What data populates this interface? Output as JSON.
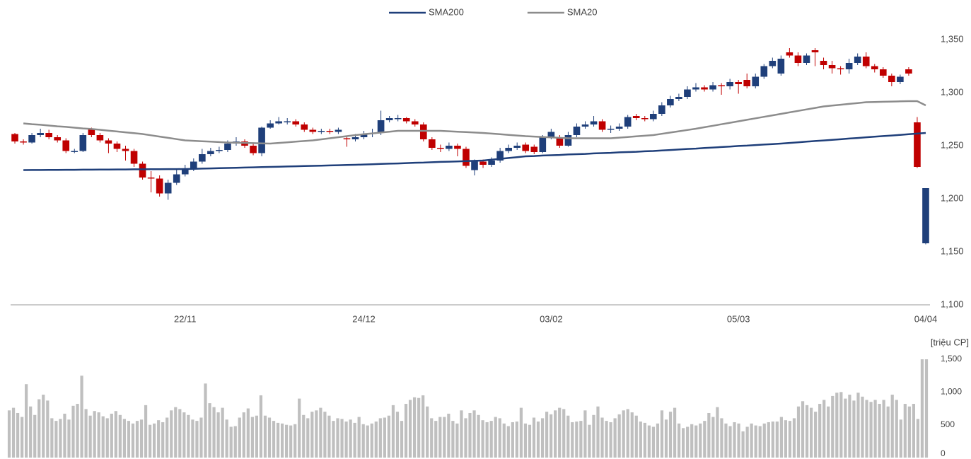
{
  "chart_data": [
    {
      "type": "candlestick",
      "categories": [
        null,
        null,
        null,
        null,
        null,
        null,
        null,
        null,
        null,
        null,
        null,
        null,
        null,
        null,
        null,
        null,
        null,
        null,
        null,
        null,
        "22/11",
        null,
        null,
        null,
        null,
        null,
        null,
        null,
        null,
        null,
        null,
        null,
        null,
        null,
        null,
        null,
        null,
        null,
        null,
        null,
        null,
        "24/12",
        null,
        null,
        null,
        null,
        null,
        null,
        null,
        null,
        null,
        null,
        null,
        null,
        null,
        null,
        null,
        null,
        null,
        null,
        null,
        null,
        null,
        "03/02",
        null,
        null,
        null,
        null,
        null,
        null,
        null,
        null,
        null,
        null,
        null,
        null,
        null,
        null,
        null,
        null,
        null,
        null,
        null,
        null,
        null,
        "05/03",
        null,
        null,
        null,
        null,
        null,
        null,
        null,
        null,
        null,
        null,
        null,
        null,
        null,
        null,
        null,
        null,
        null,
        null,
        null,
        null,
        null,
        "04/04"
      ],
      "open": [
        1261,
        1254,
        1253,
        1260,
        1262,
        1258,
        1255,
        1245,
        1245,
        1266,
        1260,
        1255,
        1252,
        1247,
        1245,
        1233,
        1220,
        1219,
        1205,
        1215,
        1223,
        1228,
        1235,
        1242,
        1245,
        1246,
        1252,
        1254,
        1250,
        1243,
        1267,
        1271,
        1273,
        1273,
        1270,
        1265,
        1263,
        1264,
        1263,
        1257,
        1256,
        1258,
        1261,
        1262,
        1274,
        1276,
        1276,
        1273,
        1270,
        1256,
        1248,
        1247,
        1250,
        1247,
        1227,
        1235,
        1232,
        1236,
        1245,
        1248,
        1251,
        1249,
        1244,
        1258,
        1258,
        1250,
        1260,
        1268,
        1270,
        1273,
        1265,
        1266,
        1268,
        1278,
        1276,
        1275,
        1280,
        1288,
        1294,
        1296,
        1303,
        1305,
        1303,
        1307,
        1306,
        1310,
        1312,
        1306,
        1315,
        1325,
        1318,
        1338,
        1335,
        1328,
        1340,
        1330,
        1326,
        1323,
        1322,
        1328,
        1334,
        1325,
        1322,
        1316,
        1310,
        1322,
        1272,
        1158
      ],
      "high": [
        1262,
        1256,
        1262,
        1266,
        1265,
        1260,
        1257,
        1247,
        1262,
        1267,
        1262,
        1257,
        1254,
        1250,
        1247,
        1235,
        1226,
        1222,
        1218,
        1228,
        1232,
        1238,
        1247,
        1248,
        1249,
        1255,
        1258,
        1256,
        1252,
        1268,
        1274,
        1277,
        1276,
        1275,
        1272,
        1267,
        1266,
        1266,
        1267,
        1259,
        1261,
        1264,
        1266,
        1283,
        1278,
        1279,
        1277,
        1275,
        1272,
        1258,
        1251,
        1253,
        1252,
        1249,
        1237,
        1237,
        1239,
        1248,
        1251,
        1253,
        1253,
        1251,
        1260,
        1266,
        1260,
        1263,
        1271,
        1273,
        1278,
        1275,
        1269,
        1271,
        1279,
        1280,
        1278,
        1283,
        1291,
        1297,
        1299,
        1306,
        1309,
        1307,
        1310,
        1309,
        1313,
        1312,
        1318,
        1318,
        1327,
        1333,
        1335,
        1342,
        1338,
        1337,
        1342,
        1333,
        1330,
        1325,
        1332,
        1337,
        1338,
        1327,
        1324,
        1318,
        1317,
        1324,
        1277,
        1210
      ],
      "low": [
        1252,
        1251,
        1252,
        1258,
        1256,
        1253,
        1243,
        1243,
        1244,
        1258,
        1253,
        1243,
        1244,
        1236,
        1230,
        1218,
        1206,
        1202,
        1199,
        1213,
        1221,
        1226,
        1233,
        1240,
        1243,
        1244,
        1250,
        1248,
        1241,
        1240,
        1266,
        1270,
        1270,
        1268,
        1263,
        1261,
        1261,
        1261,
        1261,
        1249,
        1254,
        1256,
        1258,
        1260,
        1272,
        1273,
        1271,
        1268,
        1254,
        1246,
        1244,
        1245,
        1240,
        1229,
        1222,
        1229,
        1230,
        1234,
        1243,
        1246,
        1243,
        1242,
        1243,
        1256,
        1248,
        1249,
        1258,
        1266,
        1268,
        1263,
        1262,
        1264,
        1266,
        1274,
        1273,
        1273,
        1278,
        1286,
        1292,
        1294,
        1301,
        1301,
        1301,
        1298,
        1303,
        1299,
        1304,
        1304,
        1313,
        1323,
        1316,
        1333,
        1325,
        1326,
        1325,
        1322,
        1318,
        1317,
        1318,
        1326,
        1323,
        1319,
        1314,
        1306,
        1308,
        1316,
        1229,
        1157
      ],
      "close": [
        1254,
        1253,
        1260,
        1262,
        1258,
        1255,
        1245,
        1245,
        1260,
        1260,
        1255,
        1252,
        1247,
        1245,
        1233,
        1220,
        1219,
        1205,
        1215,
        1223,
        1228,
        1235,
        1242,
        1245,
        1246,
        1252,
        1254,
        1250,
        1243,
        1267,
        1271,
        1273,
        1273,
        1270,
        1265,
        1263,
        1264,
        1263,
        1265,
        1256,
        1258,
        1261,
        1262,
        1274,
        1276,
        1276,
        1273,
        1270,
        1256,
        1248,
        1247,
        1250,
        1247,
        1231,
        1235,
        1232,
        1236,
        1245,
        1248,
        1250,
        1245,
        1244,
        1258,
        1263,
        1250,
        1260,
        1268,
        1270,
        1273,
        1265,
        1266,
        1268,
        1277,
        1276,
        1275,
        1280,
        1288,
        1294,
        1296,
        1303,
        1305,
        1303,
        1307,
        1306,
        1310,
        1308,
        1306,
        1315,
        1325,
        1330,
        1332,
        1335,
        1328,
        1335,
        1338,
        1326,
        1323,
        1322,
        1328,
        1334,
        1325,
        1322,
        1316,
        1310,
        1315,
        1318,
        1230,
        1210
      ],
      "up_color": "#1f3f7a",
      "down_color": "#c00000",
      "series": [
        {
          "name": "SMA200",
          "color": "#1f3f7a",
          "values": [
            null,
            1227.0,
            1227.1,
            1227.1,
            1227.2,
            1227.2,
            1227.3,
            1227.3,
            1227.4,
            1227.4,
            1227.5,
            1227.5,
            1227.6,
            1227.6,
            1227.7,
            1227.7,
            1227.8,
            1227.8,
            1227.9,
            1227.9,
            1228.0,
            1228.2,
            1228.4,
            1228.6,
            1228.8,
            1229.0,
            1229.2,
            1229.4,
            1229.6,
            1229.8,
            1230.0,
            1230.2,
            1230.4,
            1230.6,
            1230.8,
            1231.0,
            1231.2,
            1231.4,
            1231.6,
            1231.8,
            1232.0,
            1232.3,
            1232.5,
            1232.8,
            1233.1,
            1233.3,
            1233.6,
            1233.9,
            1234.1,
            1234.4,
            1234.7,
            1234.9,
            1235.2,
            1235.5,
            1235.7,
            1236.0,
            1236.8,
            1237.6,
            1238.4,
            1239.2,
            1240.0,
            1240.3,
            1240.7,
            1241.0,
            1241.3,
            1241.7,
            1242.0,
            1242.3,
            1242.7,
            1243.0,
            1243.3,
            1243.7,
            1244.0,
            1244.3,
            1244.7,
            1245.0,
            1245.5,
            1245.9,
            1246.4,
            1246.9,
            1247.3,
            1247.8,
            1248.3,
            1248.7,
            1249.2,
            1249.7,
            1250.1,
            1250.6,
            1251.1,
            1251.5,
            1252.0,
            1252.6,
            1253.2,
            1253.8,
            1254.4,
            1254.9,
            1255.5,
            1256.1,
            1256.7,
            1257.3,
            1257.9,
            1258.5,
            1259.1,
            1259.6,
            1260.2,
            1260.8,
            1261.4,
            1262.0
          ]
        },
        {
          "name": "SMA20",
          "color": "#8c8c8c",
          "values": [
            null,
            1271,
            1270.3,
            1269.7,
            1269,
            1268.3,
            1267.7,
            1267,
            1266.3,
            1265.7,
            1265,
            1264.2,
            1263.4,
            1262.6,
            1261.8,
            1261,
            1259.8,
            1258.6,
            1257.4,
            1256.2,
            1255,
            1254.6,
            1254.2,
            1253.8,
            1253.4,
            1253,
            1252.8,
            1252.6,
            1252.4,
            1252.2,
            1252,
            1252.6,
            1253.2,
            1253.8,
            1254.4,
            1255,
            1256,
            1257,
            1258,
            1259,
            1260,
            1260.8,
            1261.6,
            1262.4,
            1263.2,
            1264,
            1264,
            1264,
            1264,
            1264,
            1264,
            1263.6,
            1263.2,
            1262.8,
            1262.4,
            1262,
            1261.4,
            1260.8,
            1260.2,
            1259.6,
            1259,
            1258.6,
            1258.2,
            1257.8,
            1257.4,
            1257,
            1257,
            1257,
            1257,
            1257,
            1257,
            1257.6,
            1258.2,
            1258.8,
            1259.4,
            1260,
            1261.2,
            1262.4,
            1263.6,
            1264.8,
            1266,
            1267.4,
            1268.8,
            1270.2,
            1271.6,
            1273,
            1274.4,
            1275.8,
            1277.2,
            1278.6,
            1280,
            1281.4,
            1282.8,
            1284.2,
            1285.6,
            1287,
            1287.8,
            1288.6,
            1289.4,
            1290.2,
            1291,
            1291.2,
            1291.4,
            1291.6,
            1291.8,
            1292,
            1292,
            1288
          ]
        }
      ],
      "ylim": [
        1100,
        1350
      ],
      "yticks": [
        {
          "value": 1100,
          "label": "1,100"
        },
        {
          "value": 1150,
          "label": "1,150"
        },
        {
          "value": 1200,
          "label": "1,200"
        },
        {
          "value": 1250,
          "label": "1,250"
        },
        {
          "value": 1300,
          "label": "1,300"
        },
        {
          "value": 1350,
          "label": "1,350"
        }
      ],
      "legend": "top"
    },
    {
      "type": "bar",
      "ylabel": "[triệu CP]",
      "color": "#bfbfbf",
      "values": [
        720,
        760,
        680,
        620,
        1120,
        780,
        650,
        890,
        960,
        870,
        600,
        560,
        590,
        670,
        580,
        790,
        820,
        1250,
        740,
        640,
        710,
        690,
        630,
        600,
        670,
        710,
        650,
        590,
        560,
        520,
        560,
        580,
        800,
        500,
        520,
        570,
        540,
        610,
        720,
        770,
        740,
        690,
        650,
        580,
        560,
        610,
        1130,
        830,
        770,
        690,
        760,
        580,
        470,
        480,
        610,
        690,
        750,
        620,
        640,
        950,
        640,
        610,
        560,
        530,
        520,
        500,
        490,
        510,
        900,
        650,
        600,
        700,
        720,
        760,
        700,
        640,
        560,
        600,
        590,
        550,
        580,
        530,
        620,
        510,
        490,
        520,
        550,
        600,
        610,
        640,
        800,
        700,
        560,
        820,
        880,
        920,
        910,
        950,
        780,
        600,
        560,
        620,
        620,
        670,
        560,
        520,
        720,
        600,
        680,
        720,
        650,
        570,
        540,
        560,
        620,
        600,
        520,
        480,
        540,
        550,
        760,
        520,
        500,
        610,
        550,
        600,
        700,
        660,
        720,
        760,
        740,
        640,
        540,
        550,
        560,
        720,
        500,
        650,
        780,
        610,
        560,
        540,
        600,
        660,
        720,
        740,
        690,
        640,
        550,
        530,
        490,
        470,
        520,
        720,
        580,
        700,
        760,
        520,
        450,
        470,
        510,
        490,
        520,
        560,
        680,
        620,
        770,
        600,
        520,
        480,
        540,
        520,
        400,
        470,
        520,
        490,
        480,
        520,
        540,
        550,
        550,
        620,
        570,
        560,
        600,
        780,
        860,
        800,
        760,
        700,
        820,
        880,
        780,
        940,
        990,
        1000,
        900,
        960,
        870,
        990,
        930,
        880,
        850,
        880,
        820,
        880,
        780,
        960,
        880,
        580,
        820,
        780,
        820,
        590,
        1500,
        1500
      ],
      "ylim": [
        0,
        1500
      ],
      "yticks": [
        0,
        500,
        {
          "value": 1000,
          "label": "1,000"
        },
        {
          "value": 1500,
          "label": "1,500"
        }
      ]
    }
  ]
}
